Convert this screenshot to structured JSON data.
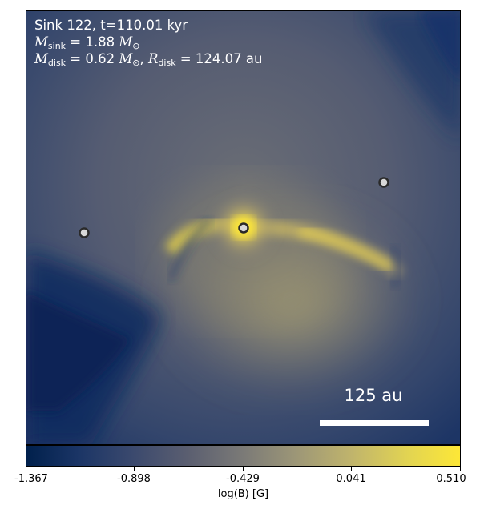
{
  "annotation": {
    "line1": "Sink 122, t=110.01 kyr",
    "m_sink_sym": "M",
    "m_sink_sub": "sink",
    "m_sink_val": " = 1.88 ",
    "m_sun_sym": "M",
    "m_sun_sub": "⊙",
    "m_disk_sym": "M",
    "m_disk_sub": "disk",
    "m_disk_val": " = 0.62 ",
    "m_disk_sun_sym": "M",
    "m_disk_sun_sub": "⊙",
    "comma": ", ",
    "r_disk_sym": "R",
    "r_disk_sub": "disk",
    "r_disk_val": " = 124.07 au"
  },
  "scale_bar": {
    "label": "125 au"
  },
  "colorbar": {
    "label": "log(B) [G]",
    "ticks": [
      "-1.367",
      "-0.898",
      "-0.429",
      "0.041",
      "0.510"
    ],
    "min": -1.367,
    "max": 0.51,
    "colors": [
      "#00204c",
      "#3c4a6e",
      "#7b7a77",
      "#c0b46c",
      "#fde737"
    ]
  },
  "sinks": [
    {
      "id": "sink-left"
    },
    {
      "id": "sink-center"
    },
    {
      "id": "sink-right"
    }
  ]
}
